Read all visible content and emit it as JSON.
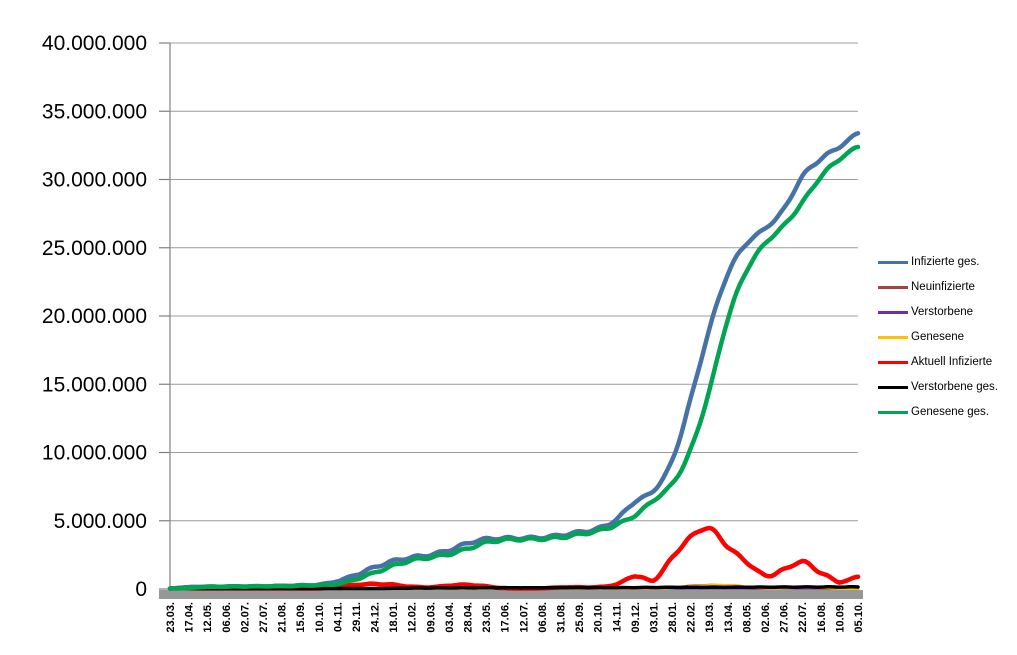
{
  "page": {
    "background": "#FFFFFF"
  },
  "chart_data": {
    "type": "line",
    "title": "",
    "unit": "persons",
    "grid": "horizontal",
    "legend_position": "right",
    "axis_colors": {
      "grid": "#9C9C9C",
      "axis": "#808080",
      "baseline_bar": "#979797"
    },
    "ylim": [
      0,
      40000000
    ],
    "yticks": {
      "values": [
        0,
        5000000,
        10000000,
        15000000,
        20000000,
        25000000,
        30000000,
        35000000,
        40000000
      ],
      "labels": [
        "0",
        "5.000.000",
        "10.000.000",
        "15.000.000",
        "20.000.000",
        "25.000.000",
        "30.000.000",
        "35.000.000",
        "40.000.000"
      ]
    },
    "categories": [
      "23.03.",
      "17.04.",
      "12.05.",
      "06.06.",
      "02.07.",
      "27.07.",
      "21.08.",
      "15.09.",
      "10.10.",
      "04.11.",
      "29.11.",
      "24.12.",
      "18.01.",
      "12.02.",
      "09.03.",
      "03.04.",
      "28.04.",
      "23.05.",
      "17.06.",
      "12.07.",
      "06.08.",
      "31.08.",
      "25.09.",
      "20.10.",
      "14.11.",
      "09.12.",
      "03.01.",
      "28.01.",
      "22.02.",
      "19.03.",
      "13.04.",
      "08.05.",
      "02.06.",
      "27.06.",
      "22.07.",
      "16.08.",
      "10.09.",
      "05.10."
    ],
    "series": [
      {
        "name": "Infizierte ges.",
        "color": "#4573A7",
        "width": 4.5,
        "values": [
          30000,
          140000,
          172000,
          186000,
          196000,
          206000,
          232000,
          265000,
          320000,
          577000,
          1053000,
          1587000,
          2050000,
          2320000,
          2510000,
          2850000,
          3350000,
          3660000,
          3717000,
          3741000,
          3780000,
          3940000,
          4170000,
          4417000,
          5100000,
          6400000,
          7200000,
          9400000,
          13900000,
          19000000,
          23100000,
          25300000,
          26400000,
          27800000,
          30200000,
          31500000,
          32400000,
          33400000
        ]
      },
      {
        "name": "Neuinfizierte",
        "color": "#A5443F",
        "width": 3,
        "values": [
          5000,
          3000,
          1000,
          500,
          400,
          600,
          1200,
          1800,
          3500,
          15000,
          22000,
          25000,
          18000,
          8000,
          9000,
          18000,
          22000,
          8000,
          1500,
          800,
          2500,
          9000,
          8000,
          10000,
          35000,
          55000,
          40000,
          120000,
          210000,
          270000,
          180000,
          80000,
          50000,
          90000,
          120000,
          50000,
          30000,
          60000
        ]
      },
      {
        "name": "Verstorbene",
        "color": "#7030A0",
        "width": 2.5,
        "values": [
          200,
          250,
          150,
          50,
          20,
          10,
          10,
          10,
          20,
          100,
          300,
          500,
          700,
          500,
          250,
          150,
          200,
          150,
          70,
          30,
          20,
          50,
          60,
          70,
          150,
          300,
          250,
          180,
          200,
          250,
          250,
          180,
          100,
          80,
          100,
          120,
          80,
          100
        ]
      },
      {
        "name": "Genesene",
        "color": "#FFC000",
        "width": 3,
        "values": [
          2000,
          4000,
          2500,
          700,
          400,
          500,
          1000,
          1500,
          2500,
          8000,
          18000,
          22000,
          20000,
          12000,
          8000,
          13000,
          20000,
          14000,
          4000,
          1200,
          1800,
          6000,
          8000,
          8000,
          20000,
          40000,
          45000,
          100000,
          180000,
          250000,
          280000,
          150000,
          70000,
          80000,
          130000,
          100000,
          40000,
          35000
        ]
      },
      {
        "name": "Aktuell Infizierte",
        "color": "#FF0000",
        "width": 4.5,
        "values": [
          40000,
          60000,
          20000,
          9000,
          6000,
          11000,
          15000,
          21000,
          35000,
          190000,
          310000,
          370000,
          310000,
          170000,
          130000,
          250000,
          310000,
          190000,
          60000,
          25000,
          50000,
          120000,
          130000,
          140000,
          330000,
          950000,
          650000,
          2300000,
          3800000,
          4450000,
          3100000,
          2000000,
          1000000,
          1400000,
          2000000,
          1200000,
          550000,
          900000
        ]
      },
      {
        "name": "Verstorbene ges.",
        "color": "#000000",
        "width": 3.5,
        "values": [
          200,
          4000,
          7500,
          8600,
          9000,
          9100,
          9300,
          9400,
          9600,
          11000,
          16000,
          29000,
          47000,
          64000,
          72000,
          77000,
          82000,
          87000,
          90000,
          91200,
          91700,
          92000,
          93000,
          95000,
          98000,
          104000,
          112000,
          117000,
          121000,
          126000,
          132000,
          136000,
          139000,
          141000,
          143000,
          146000,
          148000,
          150000
        ]
      },
      {
        "name": "Genesene ges.",
        "color": "#00A551",
        "width": 4.5,
        "values": [
          5000,
          80000,
          150000,
          170000,
          185000,
          195000,
          210000,
          240000,
          290000,
          370000,
          720000,
          1200000,
          1700000,
          2100000,
          2320000,
          2550000,
          2950000,
          3400000,
          3600000,
          3640000,
          3670000,
          3780000,
          4000000,
          4250000,
          4700000,
          5400000,
          6500000,
          7700000,
          10200000,
          14500000,
          19800000,
          23300000,
          25300000,
          26600000,
          28300000,
          30200000,
          31500000,
          32400000
        ]
      }
    ]
  }
}
